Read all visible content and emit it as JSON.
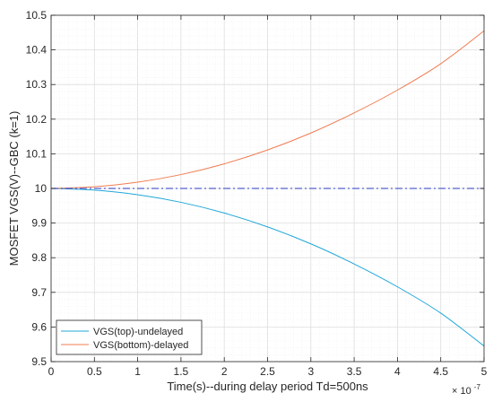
{
  "chart_data": {
    "type": "line",
    "title": "",
    "xlabel": "Time(s)--during delay period Td=500ns",
    "ylabel": "MOSFET VGS(V)--GBC (k=1)",
    "x_exponent": "× 10",
    "x_exponent_power": "-7",
    "xlim": [
      0,
      5
    ],
    "ylim": [
      9.5,
      10.5
    ],
    "xticks": [
      0,
      0.5,
      1,
      1.5,
      2,
      2.5,
      3,
      3.5,
      4,
      4.5,
      5
    ],
    "xtick_labels": [
      "0",
      "0.5",
      "1",
      "1.5",
      "2",
      "2.5",
      "3",
      "3.5",
      "4",
      "4.5",
      "5"
    ],
    "yticks": [
      9.5,
      9.6,
      9.7,
      9.8,
      9.9,
      10,
      10.1,
      10.2,
      10.3,
      10.4,
      10.5
    ],
    "ytick_labels": [
      "9.5",
      "9.6",
      "9.7",
      "9.8",
      "9.9",
      "10",
      "10.1",
      "10.2",
      "10.3",
      "10.4",
      "10.5"
    ],
    "grid": true,
    "legend_position": "bottom-left",
    "x": [
      0,
      0.5,
      1,
      1.5,
      2,
      2.5,
      3,
      3.5,
      4,
      4.5,
      5
    ],
    "series": [
      {
        "name": "VGS(top)-undelayed",
        "color": "#1fa7d9",
        "style": "solid",
        "values": [
          10.0,
          9.995,
          9.982,
          9.96,
          9.929,
          9.889,
          9.84,
          9.782,
          9.716,
          9.64,
          9.545
        ]
      },
      {
        "name": "VGS(bottom)-delayed",
        "color": "#f07c50",
        "style": "solid",
        "values": [
          10.0,
          10.005,
          10.018,
          10.04,
          10.071,
          10.111,
          10.16,
          10.218,
          10.284,
          10.36,
          10.455
        ]
      },
      {
        "name": "",
        "color": "#5560d0",
        "style": "dash-dot",
        "values": [
          10,
          10,
          10,
          10,
          10,
          10,
          10,
          10,
          10,
          10,
          10
        ]
      }
    ]
  }
}
